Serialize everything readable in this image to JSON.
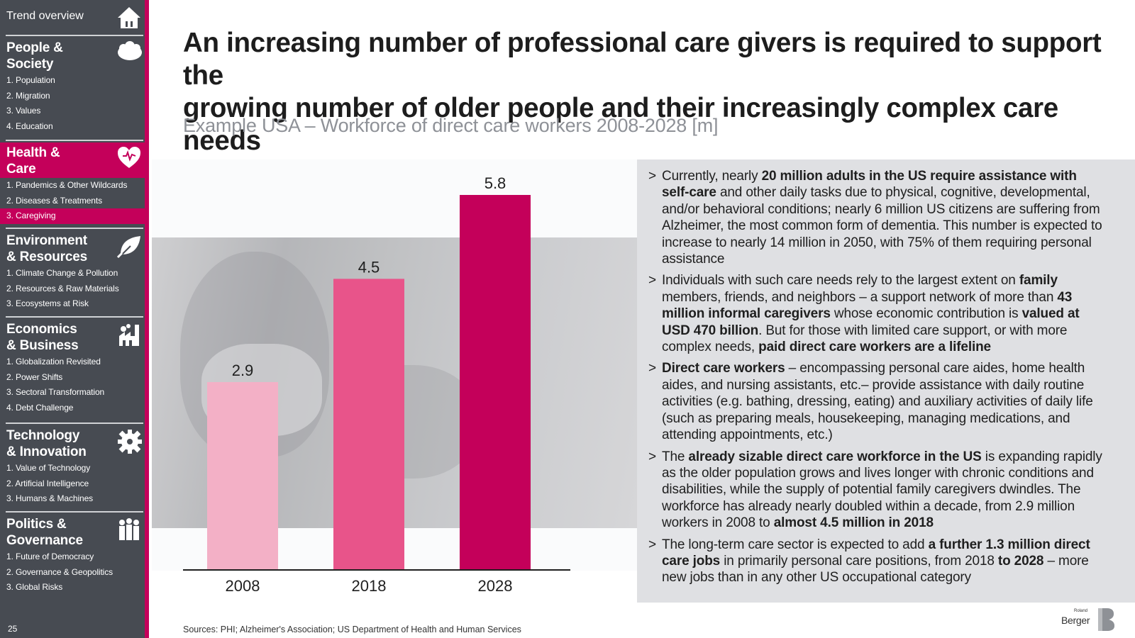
{
  "sidebar": {
    "trend_label": "Trend overview",
    "page_number": "25",
    "sections": [
      {
        "title_lines": [
          "People &",
          "Society"
        ],
        "icon": "people-icon",
        "items": [
          "1. Population",
          "2. Migration",
          "3. Values",
          "4. Education"
        ]
      },
      {
        "title_lines": [
          "Health &",
          "Care"
        ],
        "icon": "heart-icon",
        "items": [
          "1. Pandemics & Other Wildcards",
          "2. Diseases & Treatments",
          "3. Caregiving"
        ]
      },
      {
        "title_lines": [
          "Environment",
          "& Resources"
        ],
        "icon": "leaf-icon",
        "items": [
          "1. Climate Change & Pollution",
          "2. Resources & Raw Materials",
          "3. Ecosystems at Risk"
        ]
      },
      {
        "title_lines": [
          "Economics",
          "& Business"
        ],
        "icon": "factory-icon",
        "items": [
          "1. Globalization Revisited",
          "2. Power Shifts",
          "3. Sectoral Transformation",
          "4. Debt Challenge"
        ]
      },
      {
        "title_lines": [
          "Technology",
          "& Innovation"
        ],
        "icon": "gear-icon",
        "items": [
          "1. Value of Technology",
          "2. Artificial Intelligence",
          "3. Humans & Machines"
        ]
      },
      {
        "title_lines": [
          "Politics &",
          "Governance"
        ],
        "icon": "people-group-icon",
        "items": [
          "1. Future of Democracy",
          "2. Governance & Geopolitics",
          "3. Global Risks"
        ]
      }
    ],
    "active_section": 1,
    "active_item": 2
  },
  "title_line1": "An increasing number of professional care givers is required to support the",
  "title_line2": "growing number of older people and their increasingly complex care needs",
  "subtitle": "Example USA – Workforce of direct care workers 2008-2028 [m]",
  "chart_data": {
    "type": "bar",
    "categories": [
      "2008",
      "2018",
      "2028"
    ],
    "values": [
      2.9,
      4.5,
      5.8
    ],
    "data_labels": [
      "2.9",
      "4.5",
      "5.8"
    ],
    "colors": [
      "#f3b0c6",
      "#e8548a",
      "#c4005a"
    ],
    "title": "",
    "xlabel": "",
    "ylabel": "",
    "ylim": [
      0,
      5.8
    ]
  },
  "bullets": [
    [
      {
        "t": "Currently, nearly "
      },
      {
        "t": "20 million adults in the US require assistance with self-care",
        "b": true
      },
      {
        "t": " and other daily tasks due to physical, cognitive, developmental, and/or behavioral conditions; nearly 6 million US citizens are suffering from Alzheimer, the most common form of dementia. This number is expected to increase to nearly 14 million in 2050, with 75% of them requiring personal assistance"
      }
    ],
    [
      {
        "t": "Individuals with such care needs rely to the largest extent on "
      },
      {
        "t": "family",
        "b": true
      },
      {
        "t": " members, friends, and neighbors – a support network of more than "
      },
      {
        "t": "43 million informal caregivers",
        "b": true
      },
      {
        "t": " whose economic contribution is "
      },
      {
        "t": "valued at USD 470 billion",
        "b": true
      },
      {
        "t": ". But for those with limited care support, or with more complex needs, "
      },
      {
        "t": "paid direct care workers are a lifeline",
        "b": true
      }
    ],
    [
      {
        "t": "Direct care workers",
        "b": true
      },
      {
        "t": " – encompassing personal care aides, home health aides, and nursing assistants, etc.– provide assistance with daily routine activities (e.g. bathing, dressing, eating) and auxiliary activities of daily life (such as preparing meals, housekeeping, managing medications, and attending appointments, etc.)"
      }
    ],
    [
      {
        "t": "The "
      },
      {
        "t": "already sizable direct care workforce in the US",
        "b": true
      },
      {
        "t": " is expanding rapidly as the older population grows and lives longer with chronic conditions and disabilities, while the supply of potential family caregivers dwindles. The workforce has already nearly doubled within a decade, from 2.9 million workers in 2008 to "
      },
      {
        "t": "almost 4.5 million in 2018",
        "b": true
      }
    ],
    [
      {
        "t": "The long-term care sector is expected to add "
      },
      {
        "t": "a further 1.3 million direct care jobs",
        "b": true
      },
      {
        "t": " in primarily personal care positions, from 2018 "
      },
      {
        "t": "to 2028",
        "b": true
      },
      {
        "t": " – more new jobs than in any other US occupational category"
      }
    ]
  ],
  "sources": "Sources: PHI; Alzheimer's Association; US Department of Health and Human Services",
  "logo": {
    "small": "Roland",
    "large": "Berger"
  }
}
